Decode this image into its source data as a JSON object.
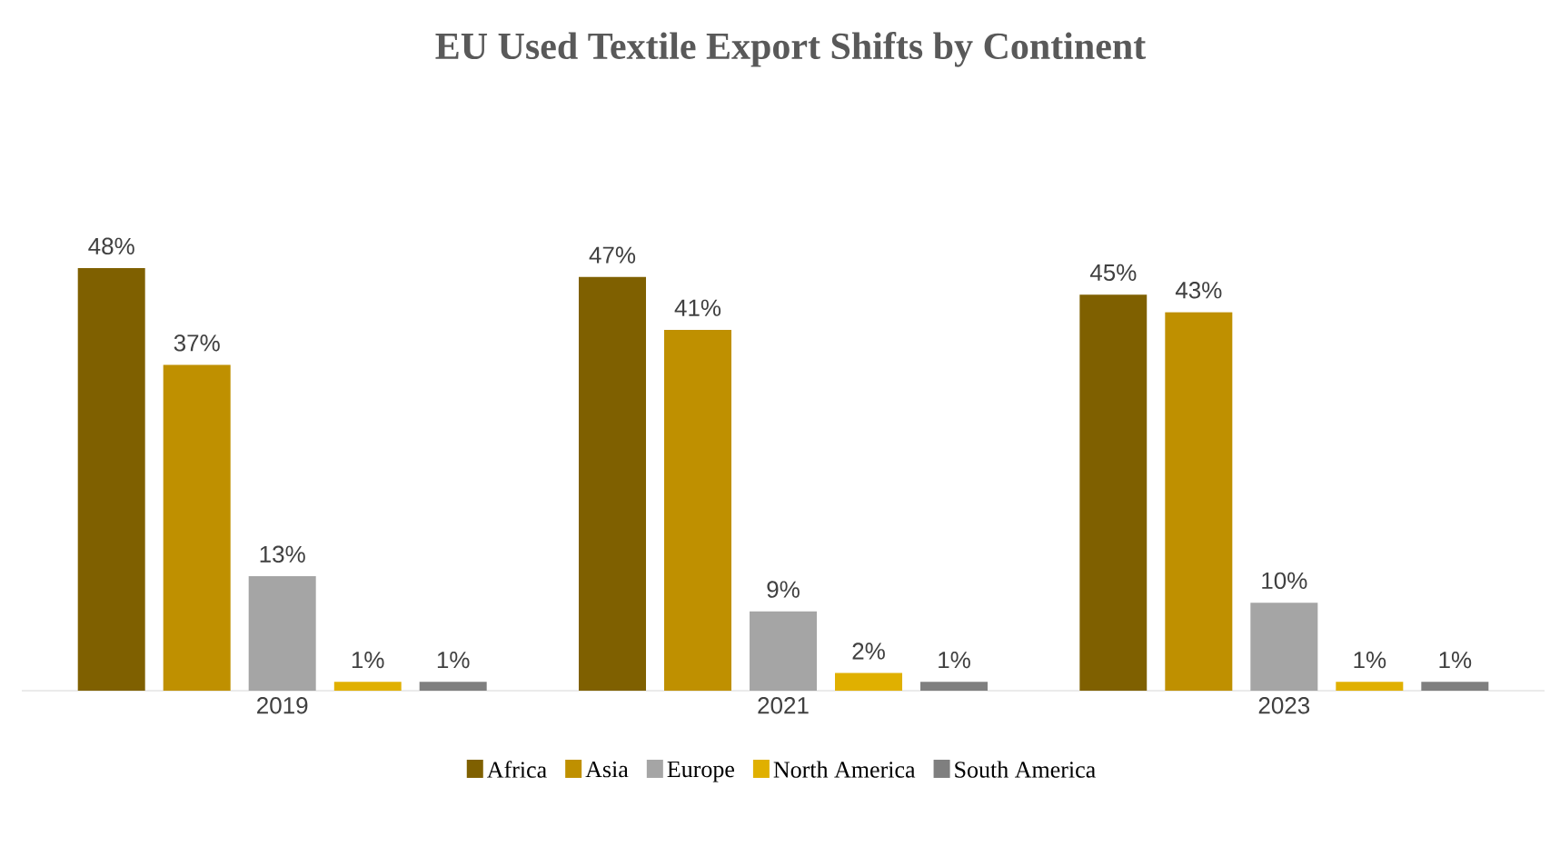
{
  "chart_data": {
    "type": "bar",
    "title": "EU Used Textile Export Shifts by Continent",
    "categories": [
      "2019",
      "2021",
      "2023"
    ],
    "series": [
      {
        "name": "Africa",
        "color": "#7f6000",
        "values": [
          48,
          47,
          45
        ],
        "value_labels": [
          "48%",
          "47%",
          "45%"
        ]
      },
      {
        "name": "Asia",
        "color": "#bf9000",
        "values": [
          37,
          41,
          43
        ],
        "value_labels": [
          "37%",
          "41%",
          "43%"
        ]
      },
      {
        "name": "Europe",
        "color": "#a5a5a5",
        "values": [
          13,
          9,
          10
        ],
        "value_labels": [
          "13%",
          "9%",
          "10%"
        ]
      },
      {
        "name": "North America",
        "color": "#e0b000",
        "values": [
          1,
          2,
          1
        ],
        "value_labels": [
          "1%",
          "2%",
          "1%"
        ]
      },
      {
        "name": "South America",
        "color": "#7f7f7f",
        "values": [
          1,
          1,
          1
        ],
        "value_labels": [
          "1%",
          "1%",
          "1%"
        ]
      }
    ],
    "legend": "bottom"
  }
}
